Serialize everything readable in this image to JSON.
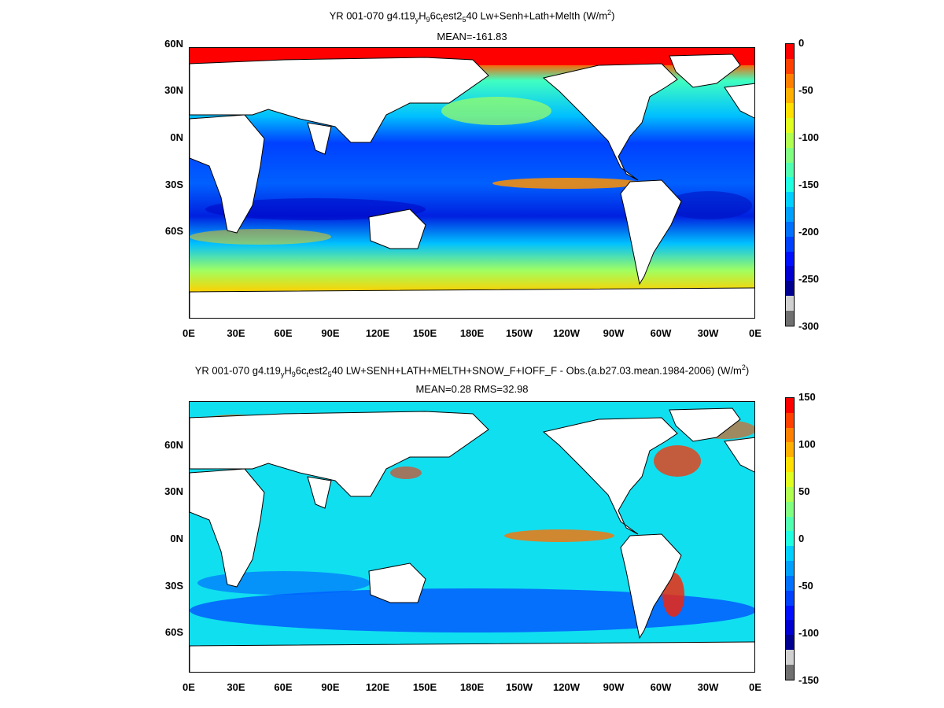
{
  "panels": [
    {
      "title_html": "YR 001-070 g4.t19<sub>y</sub>H<sub>9</sub>6c<sub>t</sub>est2<sub>5</sub>40 Lw+Senh+Lath+Melth (W/m<sup>2</sup>)",
      "subtitle": "MEAN=-161.83",
      "ylabels": [
        "60N",
        "30N",
        "0N",
        "30S",
        "60S"
      ],
      "xlabels": [
        "0E",
        "30E",
        "60E",
        "90E",
        "120E",
        "150E",
        "180E",
        "150W",
        "120W",
        "90W",
        "60W",
        "30W",
        "0E"
      ],
      "colorbar_labels": [
        "0",
        "-50",
        "-100",
        "-150",
        "-200",
        "-250",
        "-300"
      ],
      "colorbar_colors": [
        "#ff0000",
        "#ff4000",
        "#ff8000",
        "#ffb000",
        "#ffe000",
        "#e0ff20",
        "#b0ff50",
        "#80ff80",
        "#50ffb0",
        "#20ffe0",
        "#00d0ff",
        "#00a0ff",
        "#0070ff",
        "#0040ff",
        "#0010ff",
        "#0000d0",
        "#000090",
        "#d0d0d0",
        "#707070"
      ]
    },
    {
      "title_html": "YR 001-070 g4.t19<sub>y</sub>H<sub>9</sub>6c<sub>t</sub>est2<sub>5</sub>40 LW+SENH+LATH+MELTH+SNOW_F+IOFF_F - Obs.(a.b27.03.mean.1984-2006) (W/m<sup>2</sup>)",
      "subtitle": "MEAN=0.28 RMS=32.98",
      "ylabels": [
        "60N",
        "30N",
        "0N",
        "30S",
        "60S"
      ],
      "xlabels": [
        "0E",
        "30E",
        "60E",
        "90E",
        "120E",
        "150E",
        "180E",
        "150W",
        "120W",
        "90W",
        "60W",
        "30W",
        "0E"
      ],
      "colorbar_labels": [
        "150",
        "100",
        "50",
        "0",
        "-50",
        "-100",
        "-150"
      ],
      "colorbar_colors": [
        "#ff0000",
        "#ff4000",
        "#ff8000",
        "#ffb000",
        "#ffe000",
        "#e0ff20",
        "#b0ff50",
        "#80ff80",
        "#50ffb0",
        "#20ffe0",
        "#00d0ff",
        "#00a0ff",
        "#0070ff",
        "#0040ff",
        "#0010ff",
        "#0000d0",
        "#000090",
        "#d0d0d0",
        "#707070"
      ]
    }
  ]
}
